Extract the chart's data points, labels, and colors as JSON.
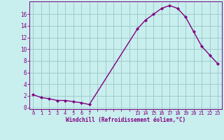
{
  "x": [
    0,
    1,
    2,
    3,
    4,
    5,
    6,
    7,
    13,
    14,
    15,
    16,
    17,
    18,
    19,
    20,
    21,
    22,
    23
  ],
  "y": [
    2.2,
    1.7,
    1.5,
    1.2,
    1.2,
    1.0,
    0.8,
    0.5,
    13.5,
    15.0,
    16.0,
    17.0,
    17.5,
    17.0,
    15.5,
    13.0,
    10.5,
    9.0,
    7.5
  ],
  "line_color": "#800080",
  "marker_color": "#800080",
  "bg_color": "#c8eeee",
  "grid_color": "#a0cccc",
  "axis_label_color": "#800080",
  "tick_color": "#800080",
  "xlabel": "Windchill (Refroidissement éolien,°C)",
  "ylabel": "",
  "title": "",
  "xticks_all": [
    0,
    1,
    2,
    3,
    4,
    5,
    6,
    7,
    8,
    9,
    10,
    11,
    12,
    13,
    14,
    15,
    16,
    17,
    18,
    19,
    20,
    21,
    22,
    23
  ],
  "xticks_labeled": [
    0,
    1,
    2,
    3,
    4,
    5,
    6,
    7,
    13,
    14,
    15,
    16,
    17,
    18,
    19,
    20,
    21,
    22,
    23
  ],
  "yticks": [
    0,
    2,
    4,
    6,
    8,
    10,
    12,
    14,
    16
  ],
  "ylim": [
    -0.3,
    18.2
  ],
  "xlim": [
    -0.5,
    23.5
  ]
}
